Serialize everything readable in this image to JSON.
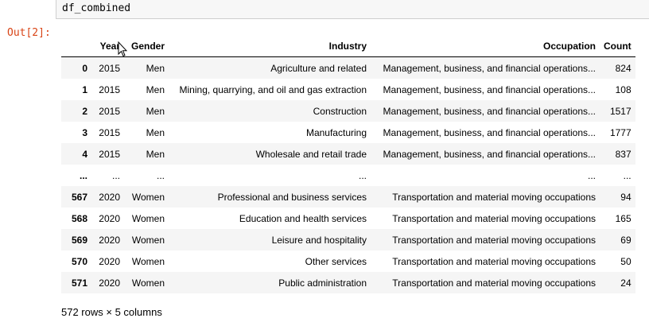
{
  "cell": {
    "code": "df_combined",
    "out_prompt": "Out[2]:"
  },
  "table": {
    "columns": [
      "",
      "Year",
      "Gender",
      "Industry",
      "Occupation",
      "Count"
    ],
    "rows": [
      {
        "idx": "0",
        "year": "2015",
        "gender": "Men",
        "industry": "Agriculture and related",
        "occupation": "Management, business, and financial operations...",
        "count": "824"
      },
      {
        "idx": "1",
        "year": "2015",
        "gender": "Men",
        "industry": "Mining, quarrying, and oil and gas extraction",
        "occupation": "Management, business, and financial operations...",
        "count": "108"
      },
      {
        "idx": "2",
        "year": "2015",
        "gender": "Men",
        "industry": "Construction",
        "occupation": "Management, business, and financial operations...",
        "count": "1517"
      },
      {
        "idx": "3",
        "year": "2015",
        "gender": "Men",
        "industry": "Manufacturing",
        "occupation": "Management, business, and financial operations...",
        "count": "1777"
      },
      {
        "idx": "4",
        "year": "2015",
        "gender": "Men",
        "industry": "Wholesale and retail trade",
        "occupation": "Management, business, and financial operations...",
        "count": "837"
      },
      {
        "idx": "...",
        "year": "...",
        "gender": "...",
        "industry": "...",
        "occupation": "...",
        "count": "..."
      },
      {
        "idx": "567",
        "year": "2020",
        "gender": "Women",
        "industry": "Professional and business services",
        "occupation": "Transportation and material moving occupations",
        "count": "94"
      },
      {
        "idx": "568",
        "year": "2020",
        "gender": "Women",
        "industry": "Education and health services",
        "occupation": "Transportation and material moving occupations",
        "count": "165"
      },
      {
        "idx": "569",
        "year": "2020",
        "gender": "Women",
        "industry": "Leisure and hospitality",
        "occupation": "Transportation and material moving occupations",
        "count": "69"
      },
      {
        "idx": "570",
        "year": "2020",
        "gender": "Women",
        "industry": "Other services",
        "occupation": "Transportation and material moving occupations",
        "count": "50"
      },
      {
        "idx": "571",
        "year": "2020",
        "gender": "Women",
        "industry": "Public administration",
        "occupation": "Transportation and material moving occupations",
        "count": "24"
      }
    ]
  },
  "summary": "572 rows × 5 columns",
  "icons": {
    "cursor": "mouse-pointer-icon"
  },
  "colors": {
    "prompt": "#d84315",
    "stripe": "#f5f5f5",
    "input_bg": "#f7f7f7"
  }
}
